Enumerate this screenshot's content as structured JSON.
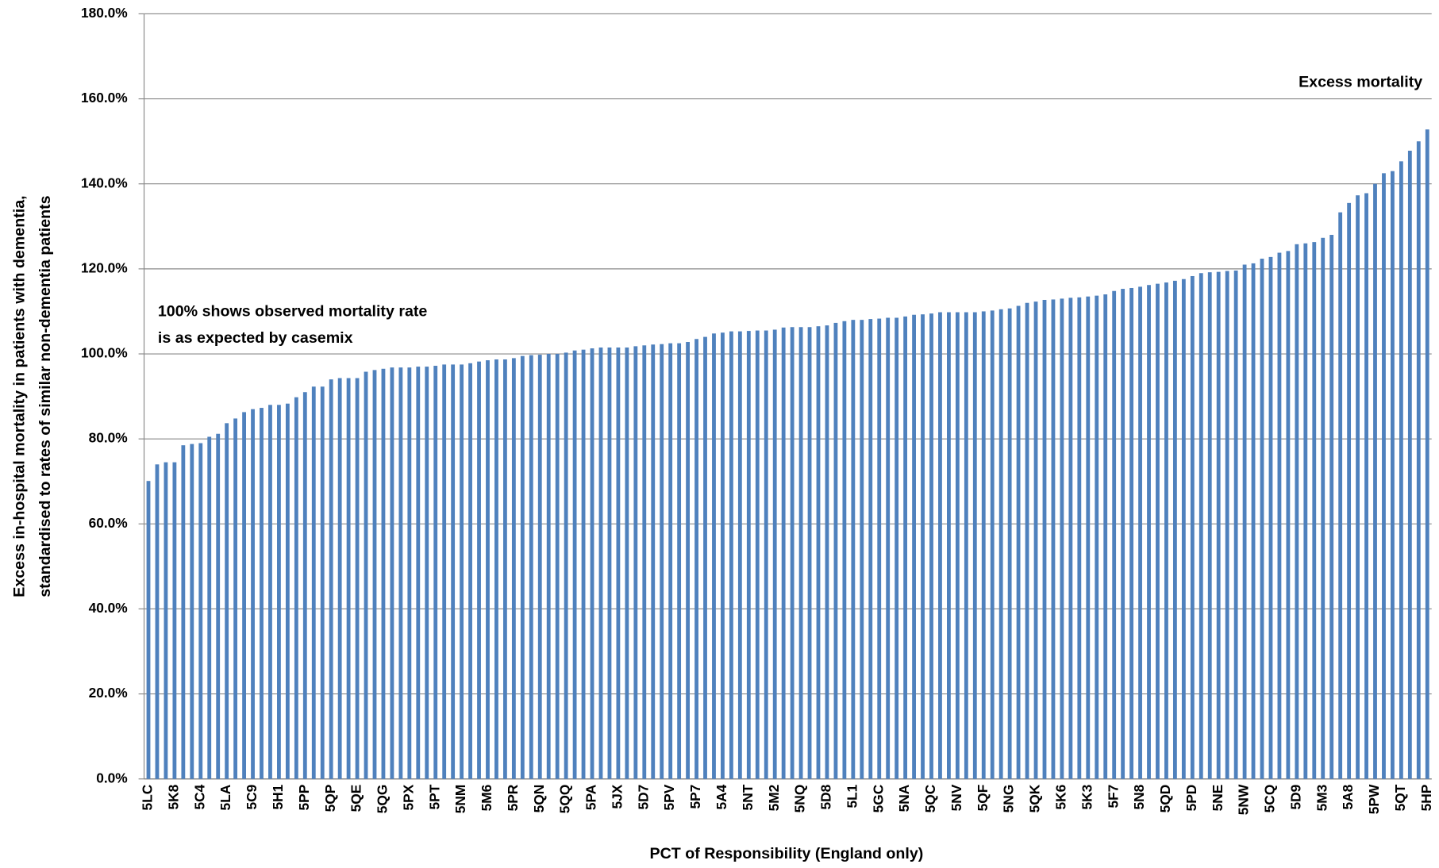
{
  "chart_data": {
    "type": "bar",
    "y_label": [
      "Excess in-hospital mortality in patients with dementia,",
      "standardised to rates of similar non-dementia patients"
    ],
    "x_label": "PCT of Responsibility (England only)",
    "annotations": [
      "Excess mortality",
      "100%  shows observed mortality rate",
      "is as expected by casemix"
    ],
    "color": "#4f81bd",
    "grid": true,
    "ylim": [
      0,
      180
    ],
    "yticks": [
      {
        "value": 0,
        "label": "0.0%"
      },
      {
        "value": 20,
        "label": "20.0%"
      },
      {
        "value": 40,
        "label": "40.0%"
      },
      {
        "value": 60,
        "label": "60.0%"
      },
      {
        "value": 80,
        "label": "80.0%"
      },
      {
        "value": 100,
        "label": "100.0%"
      },
      {
        "value": 120,
        "label": "120.0%"
      },
      {
        "value": 140,
        "label": "140.0%"
      },
      {
        "value": 160,
        "label": "160.0%"
      },
      {
        "value": 180,
        "label": "180.0%"
      }
    ],
    "categories": [
      "5LC",
      null,
      null,
      "5K8",
      null,
      null,
      "5C4",
      null,
      null,
      "5LA",
      null,
      null,
      "5C9",
      null,
      null,
      "5H1",
      null,
      null,
      "5PP",
      null,
      null,
      "5QP",
      null,
      null,
      "5QE",
      null,
      null,
      "5QG",
      null,
      null,
      "5PX",
      null,
      null,
      "5PT",
      null,
      null,
      "5NM",
      null,
      null,
      "5M6",
      null,
      null,
      "5PR",
      null,
      null,
      "5QN",
      null,
      null,
      "5QQ",
      null,
      null,
      "5PA",
      null,
      null,
      "5JX",
      null,
      null,
      "5D7",
      null,
      null,
      "5PV",
      null,
      null,
      "5P7",
      null,
      null,
      "5A4",
      null,
      null,
      "5NT",
      null,
      null,
      "5M2",
      null,
      null,
      "5NQ",
      null,
      null,
      "5D8",
      null,
      null,
      "5L1",
      null,
      null,
      "5GC",
      null,
      null,
      "5NA",
      null,
      null,
      "5QC",
      null,
      null,
      "5NV",
      null,
      null,
      "5QF",
      null,
      null,
      "5NG",
      null,
      null,
      "5QK",
      null,
      null,
      "5K6",
      null,
      null,
      "5K3",
      null,
      null,
      "5F7",
      null,
      null,
      "5N8",
      null,
      null,
      "5QD",
      null,
      null,
      "5PD",
      null,
      null,
      "5NE",
      null,
      null,
      "5NW",
      null,
      null,
      "5CQ",
      null,
      null,
      "5D9",
      null,
      null,
      "5M3",
      null,
      null,
      "5A8",
      null,
      null,
      "5PW",
      null,
      null,
      "5QT",
      null,
      null,
      "5HP"
    ],
    "values": [
      70.1,
      74.0,
      74.5,
      74.5,
      78.5,
      78.8,
      79.0,
      80.5,
      81.2,
      83.7,
      84.8,
      86.3,
      87.0,
      87.3,
      88.0,
      88.0,
      88.3,
      89.8,
      91.0,
      92.3,
      92.3,
      94.0,
      94.3,
      94.3,
      94.3,
      95.8,
      96.2,
      96.5,
      96.8,
      96.8,
      96.8,
      97.0,
      97.0,
      97.2,
      97.5,
      97.5,
      97.5,
      97.8,
      98.2,
      98.5,
      98.7,
      98.7,
      99.0,
      99.5,
      99.7,
      99.8,
      100.0,
      100.0,
      100.3,
      100.8,
      101.0,
      101.3,
      101.5,
      101.5,
      101.5,
      101.5,
      101.8,
      102.0,
      102.2,
      102.3,
      102.5,
      102.5,
      102.8,
      103.5,
      104.0,
      104.8,
      105.0,
      105.3,
      105.3,
      105.4,
      105.5,
      105.5,
      105.7,
      106.2,
      106.3,
      106.3,
      106.3,
      106.5,
      106.7,
      107.3,
      107.7,
      108.0,
      108.0,
      108.2,
      108.3,
      108.5,
      108.5,
      108.8,
      109.2,
      109.3,
      109.5,
      109.8,
      109.8,
      109.8,
      109.8,
      109.8,
      110.0,
      110.2,
      110.5,
      110.7,
      111.3,
      112.0,
      112.3,
      112.7,
      112.8,
      113.0,
      113.2,
      113.3,
      113.5,
      113.7,
      114.0,
      114.8,
      115.3,
      115.5,
      115.8,
      116.2,
      116.5,
      116.8,
      117.2,
      117.6,
      118.3,
      119.0,
      119.2,
      119.3,
      119.5,
      119.6,
      121.0,
      121.3,
      122.4,
      122.8,
      123.8,
      124.2,
      125.8,
      126.0,
      126.3,
      127.3,
      128.0,
      133.3,
      135.5,
      137.3,
      137.8,
      140.0,
      142.5,
      143.0,
      145.3,
      147.8,
      150.0,
      152.8
    ]
  }
}
